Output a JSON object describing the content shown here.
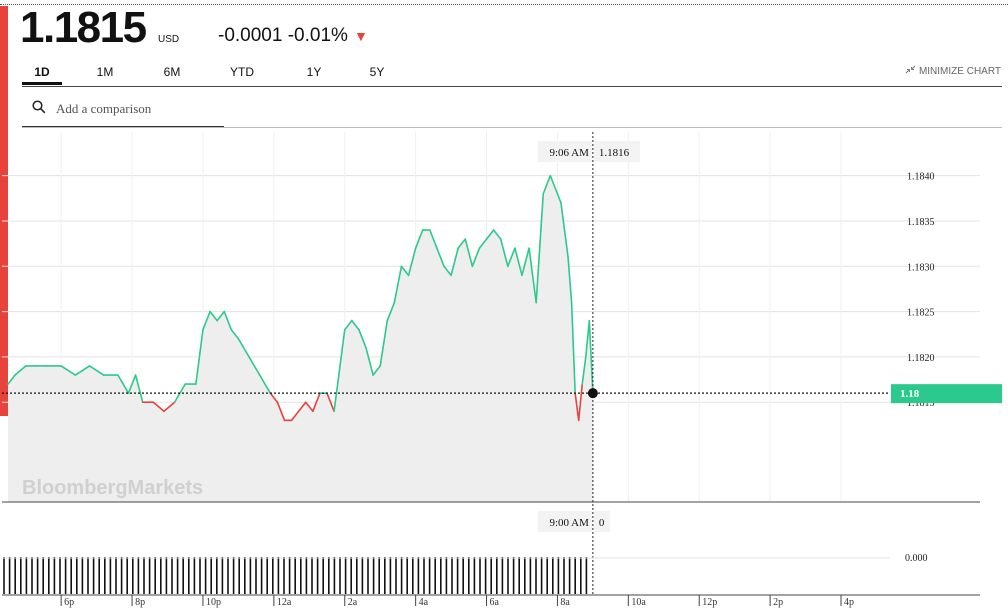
{
  "quote": {
    "price": "1.1815",
    "currency": "USD",
    "change": "-0.0001 -0.01%",
    "change_arrow": "▼",
    "down_color": "#e8433a",
    "up_color": "#2bc98d"
  },
  "tabs": [
    {
      "label": "1D",
      "active": true
    },
    {
      "label": "1M",
      "active": false
    },
    {
      "label": "6M",
      "active": false
    },
    {
      "label": "YTD",
      "active": false
    },
    {
      "label": "1Y",
      "active": false
    },
    {
      "label": "5Y",
      "active": false
    }
  ],
  "minimize_label": "MINIMIZE CHART",
  "minimize_icon": "minimize-arrows-icon",
  "search": {
    "placeholder": "Add a comparison",
    "icon": "search-icon"
  },
  "watermark": "BloombergMarkets",
  "chart_data": {
    "type": "line",
    "baseline": 1.1816,
    "ylim": [
      1.1809,
      1.1847
    ],
    "y_ticks": [
      "1.1840",
      "1.1835",
      "1.1830",
      "1.1825",
      "1.1820",
      "1.1815"
    ],
    "x_ticks": [
      "6p",
      "8p",
      "10p",
      "12a",
      "2a",
      "4a",
      "6a",
      "8a",
      "10a",
      "12p",
      "2p",
      "4p"
    ],
    "x_hours": [
      18,
      20,
      22,
      24,
      26,
      28,
      30,
      32,
      34,
      36,
      38,
      40
    ],
    "x_range": [
      16.5,
      41.1
    ],
    "crosshair": {
      "time_label": "9:06 AM",
      "value_label": "1.1816",
      "hour": 33.0
    },
    "last_value_tag": "1.18",
    "volume": {
      "time_label": "9:00 AM",
      "value_label": "0",
      "y_tick": "0.000"
    },
    "series": [
      {
        "x": [
          16.5,
          16.7,
          17.0,
          17.3,
          17.6,
          18.0,
          18.4,
          18.8,
          19.2,
          19.6,
          19.9,
          20.1,
          20.3,
          20.6,
          20.9,
          21.2,
          21.5,
          21.8,
          22.0,
          22.2,
          22.4,
          22.6,
          22.8,
          23.0,
          23.3,
          23.6,
          23.9,
          24.1,
          24.3,
          24.5,
          24.7,
          24.9,
          25.1,
          25.3,
          25.5,
          25.7,
          26.0,
          26.2,
          26.4,
          26.6,
          26.8,
          27.0,
          27.2,
          27.4,
          27.6,
          27.8,
          28.0,
          28.2,
          28.4,
          28.6,
          28.8,
          29.0,
          29.2,
          29.4,
          29.6,
          29.8,
          30.0,
          30.2,
          30.4,
          30.6,
          30.8,
          31.0,
          31.2,
          31.4,
          31.6,
          31.8,
          32.0,
          32.1,
          32.2,
          32.3,
          32.4,
          32.5,
          32.6,
          32.7,
          32.8,
          32.9,
          33.0
        ],
        "y": [
          1.1817,
          1.1818,
          1.1819,
          1.1819,
          1.1819,
          1.1819,
          1.1818,
          1.1819,
          1.1818,
          1.1818,
          1.1816,
          1.1818,
          1.1815,
          1.1815,
          1.1814,
          1.1815,
          1.1817,
          1.1817,
          1.1823,
          1.1825,
          1.1824,
          1.1825,
          1.1823,
          1.1822,
          1.182,
          1.1818,
          1.1816,
          1.1815,
          1.1813,
          1.1813,
          1.1814,
          1.1815,
          1.1814,
          1.1816,
          1.1816,
          1.1814,
          1.1823,
          1.1824,
          1.1823,
          1.1821,
          1.1818,
          1.1819,
          1.1824,
          1.1826,
          1.183,
          1.1829,
          1.1832,
          1.1834,
          1.1834,
          1.1832,
          1.183,
          1.1829,
          1.1832,
          1.1833,
          1.183,
          1.1832,
          1.1833,
          1.1834,
          1.1833,
          1.183,
          1.1832,
          1.1829,
          1.1832,
          1.1826,
          1.1838,
          1.184,
          1.1838,
          1.1837,
          1.1834,
          1.1831,
          1.1826,
          1.1816,
          1.1813,
          1.1817,
          1.182,
          1.1824,
          1.1816
        ]
      }
    ]
  }
}
